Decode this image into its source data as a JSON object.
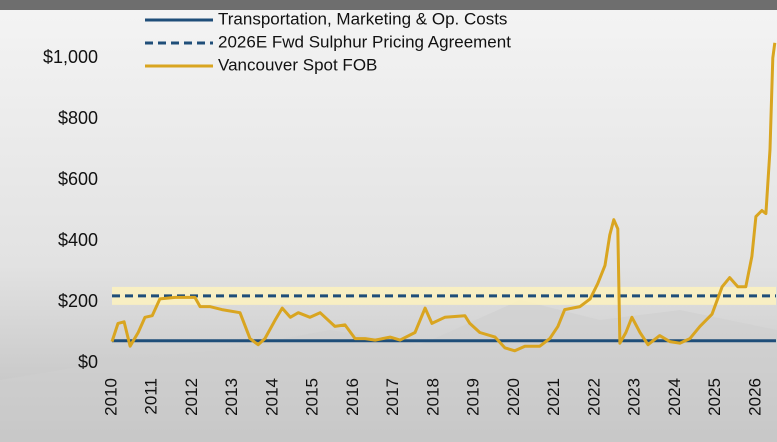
{
  "chart_data": {
    "type": "line",
    "xlim": [
      2010,
      2026.5
    ],
    "xticks": [
      2010,
      2011,
      2012,
      2013,
      2014,
      2015,
      2016,
      2017,
      2018,
      2019,
      2020,
      2021,
      2022,
      2023,
      2024,
      2025,
      2026
    ],
    "ylim": [
      0,
      1000
    ],
    "yticks": [
      {
        "value": 0,
        "label": "$0"
      },
      {
        "value": 200,
        "label": "$200"
      },
      {
        "value": 400,
        "label": "$400"
      },
      {
        "value": 600,
        "label": "$600"
      },
      {
        "value": 800,
        "label": "$800"
      },
      {
        "value": 1000,
        "label": "$1,000"
      }
    ],
    "reference_lines": [
      {
        "name": "Transportation, Marketing & Op. Costs",
        "value": 73,
        "color": "#1f4e79",
        "style": "solid"
      },
      {
        "name": "2026E Fwd Sulphur Pricing Agreement",
        "value": 220,
        "color": "#1f4e79",
        "style": "dashed"
      }
    ],
    "series": [
      {
        "name": "Vancouver Spot FOB",
        "color": "#d9a520",
        "x": [
          2010.0,
          2010.15,
          2010.3,
          2010.45,
          2010.65,
          2010.82,
          2011.0,
          2011.19,
          2011.57,
          2012.06,
          2012.19,
          2012.43,
          2012.73,
          2013.18,
          2013.43,
          2013.63,
          2013.8,
          2014.05,
          2014.23,
          2014.43,
          2014.63,
          2014.92,
          2015.17,
          2015.54,
          2015.79,
          2016.04,
          2016.29,
          2016.54,
          2016.91,
          2017.16,
          2017.53,
          2017.78,
          2017.95,
          2018.27,
          2018.77,
          2018.89,
          2019.14,
          2019.52,
          2019.76,
          2020.01,
          2020.26,
          2020.63,
          2020.88,
          2021.08,
          2021.25,
          2021.63,
          2021.88,
          2022.07,
          2022.25,
          2022.37,
          2022.47,
          2022.57,
          2022.62,
          2022.77,
          2022.92,
          2023.12,
          2023.32,
          2023.61,
          2023.86,
          2024.11,
          2024.36,
          2024.61,
          2024.91,
          2025.16,
          2025.35,
          2025.55,
          2025.75,
          2025.9,
          2026.0,
          2026.15,
          2026.25,
          2026.35,
          2026.42,
          2026.47
        ],
        "values": [
          70,
          130,
          135,
          55,
          100,
          150,
          155,
          210,
          215,
          215,
          185,
          185,
          175,
          165,
          80,
          60,
          80,
          140,
          180,
          150,
          165,
          150,
          165,
          120,
          125,
          80,
          80,
          75,
          85,
          75,
          100,
          180,
          130,
          150,
          155,
          130,
          100,
          85,
          50,
          40,
          55,
          55,
          80,
          120,
          175,
          185,
          210,
          260,
          320,
          420,
          470,
          440,
          65,
          100,
          150,
          100,
          60,
          90,
          70,
          65,
          80,
          120,
          160,
          250,
          280,
          250,
          250,
          350,
          480,
          500,
          490,
          700,
          1000,
          1050
        ]
      }
    ]
  }
}
